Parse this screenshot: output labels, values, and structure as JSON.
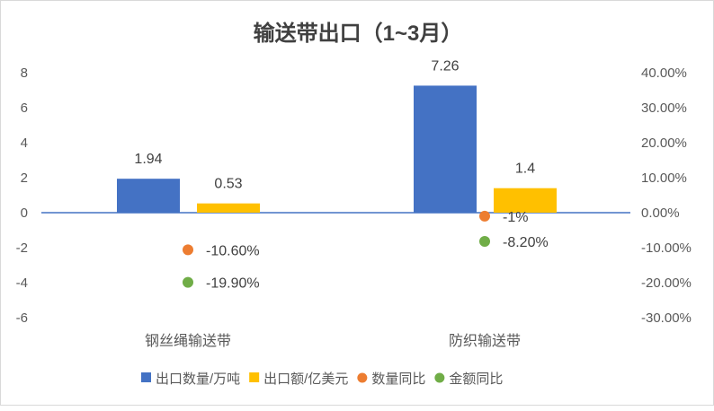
{
  "chart_data": {
    "type": "bar",
    "title": "输送带出口（1~3月）",
    "categories": [
      "钢丝绳输送带",
      "防织输送带"
    ],
    "series": [
      {
        "name": "出口数量/万吨",
        "kind": "bar",
        "axis": "left",
        "color": "#4472C4",
        "values": [
          1.94,
          7.26
        ],
        "labels": [
          "1.94",
          "7.26"
        ]
      },
      {
        "name": "出口额/亿美元",
        "kind": "bar",
        "axis": "left",
        "color": "#FFC000",
        "values": [
          0.53,
          1.4
        ],
        "labels": [
          "0.53",
          "1.4"
        ]
      },
      {
        "name": "数量同比",
        "kind": "scatter",
        "axis": "right",
        "color": "#ED7D31",
        "values": [
          -10.6,
          -1
        ],
        "labels": [
          "-10.60%",
          "-1%"
        ]
      },
      {
        "name": "金额同比",
        "kind": "scatter",
        "axis": "right",
        "color": "#70AD47",
        "values": [
          -19.9,
          -8.2
        ],
        "labels": [
          "-19.90%",
          "-8.20%"
        ]
      }
    ],
    "left_axis": {
      "ylim": [
        -6,
        8
      ],
      "ticks": [
        "8",
        "6",
        "4",
        "2",
        "0",
        "-2",
        "-4",
        "-6"
      ]
    },
    "right_axis": {
      "ylim": [
        -30,
        40
      ],
      "ticks": [
        "40.00%",
        "30.00%",
        "20.00%",
        "10.00%",
        "0.00%",
        "-10.00%",
        "-20.00%",
        "-30.00%"
      ]
    },
    "legend_position": "bottom",
    "grid": false
  }
}
